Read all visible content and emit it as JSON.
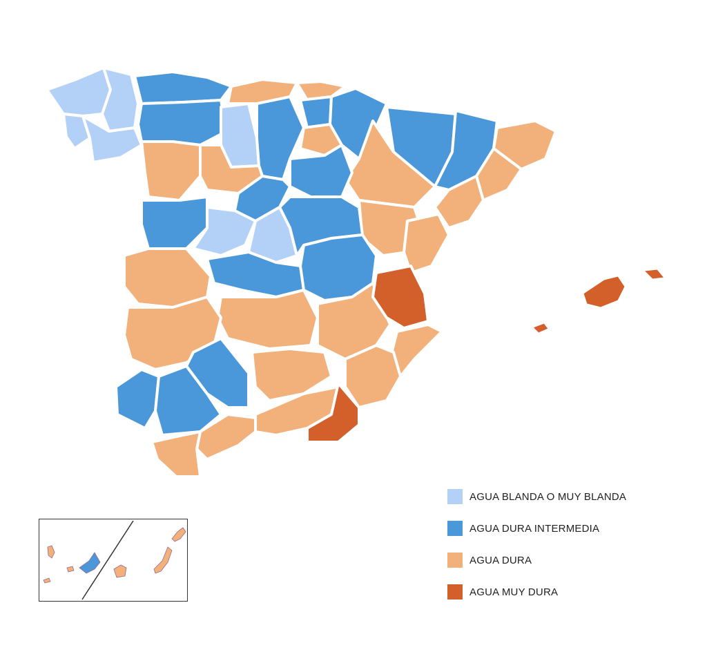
{
  "colors": {
    "soft": "#b3d1f7",
    "intermediate": "#4a98da",
    "hard": "#f2b07a",
    "very_hard": "#d3602a"
  },
  "legend": [
    {
      "key": "soft",
      "label": "AGUA BLANDA O MUY BLANDA"
    },
    {
      "key": "intermediate",
      "label": "AGUA DURA INTERMEDIA"
    },
    {
      "key": "hard",
      "label": "AGUA DURA"
    },
    {
      "key": "very_hard",
      "label": "AGUA MUY DURA"
    }
  ]
}
